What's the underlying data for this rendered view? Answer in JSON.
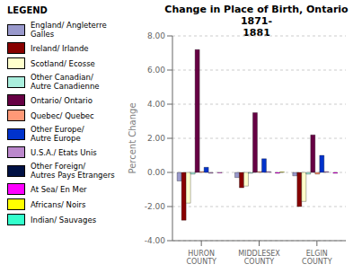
{
  "chart_data": {
    "type": "bar",
    "title": "Change in Place of Birth, Ontario 1871-\n1881",
    "ylabel": "Percent Change",
    "legend_title": "LEGEND",
    "legend": "left",
    "grid": true,
    "categories": [
      "HURON COUNTY",
      "MIDDLESEX COUNTY",
      "ELGIN COUNTY"
    ],
    "ylim": [
      -4.0,
      8.0
    ],
    "yticks": [
      {
        "value": -4.0,
        "label": "-4.00"
      },
      {
        "value": -2.0,
        "label": "-2.00"
      },
      {
        "value": 0.0,
        "label": "0.00"
      },
      {
        "value": 2.0,
        "label": "2.00"
      },
      {
        "value": 4.0,
        "label": "4.00"
      },
      {
        "value": 6.0,
        "label": "6.00"
      },
      {
        "value": 8.0,
        "label": "8.00"
      }
    ],
    "series": [
      {
        "name": "England/ Angleterre Galles",
        "color": "#9999cc",
        "values": [
          -0.5,
          -0.3,
          -0.2
        ]
      },
      {
        "name": "Ireland/ Irlande",
        "color": "#880000",
        "values": [
          -2.8,
          -0.9,
          -2.0
        ]
      },
      {
        "name": "Scotland/ Ecosse",
        "color": "#ffffcc",
        "values": [
          -1.8,
          -0.8,
          -1.7
        ]
      },
      {
        "name": "Other Canadian/\nAutre Canadienne",
        "color": "#aaeedd",
        "values": [
          -0.1,
          -0.05,
          -0.1
        ]
      },
      {
        "name": "Ontario/ Ontario",
        "color": "#660044",
        "values": [
          7.2,
          3.5,
          2.2
        ]
      },
      {
        "name": "Quebec/ Quebec",
        "color": "#ff9977",
        "values": [
          0.05,
          0.05,
          -0.1
        ]
      },
      {
        "name": "Other Europe/\nAutre Europe",
        "color": "#0033cc",
        "values": [
          0.3,
          0.8,
          1.0
        ]
      },
      {
        "name": "U.S.A./ Etats Unis",
        "color": "#bb88cc",
        "values": [
          -0.05,
          0.05,
          0.05
        ]
      },
      {
        "name": "Other Foreign/\nAutres Pays Etrangers",
        "color": "#001144",
        "values": [
          0.0,
          0.0,
          0.0
        ]
      },
      {
        "name": "At Sea/ En Mer",
        "color": "#ff00ff",
        "values": [
          -0.02,
          -0.05,
          -0.05
        ]
      },
      {
        "name": "Africans/ Noirs",
        "color": "#ffff00",
        "values": [
          0.0,
          0.02,
          0.0
        ]
      },
      {
        "name": "Indian/ Sauvages",
        "color": "#33ffcc",
        "values": [
          0.0,
          0.0,
          0.0
        ]
      }
    ]
  }
}
